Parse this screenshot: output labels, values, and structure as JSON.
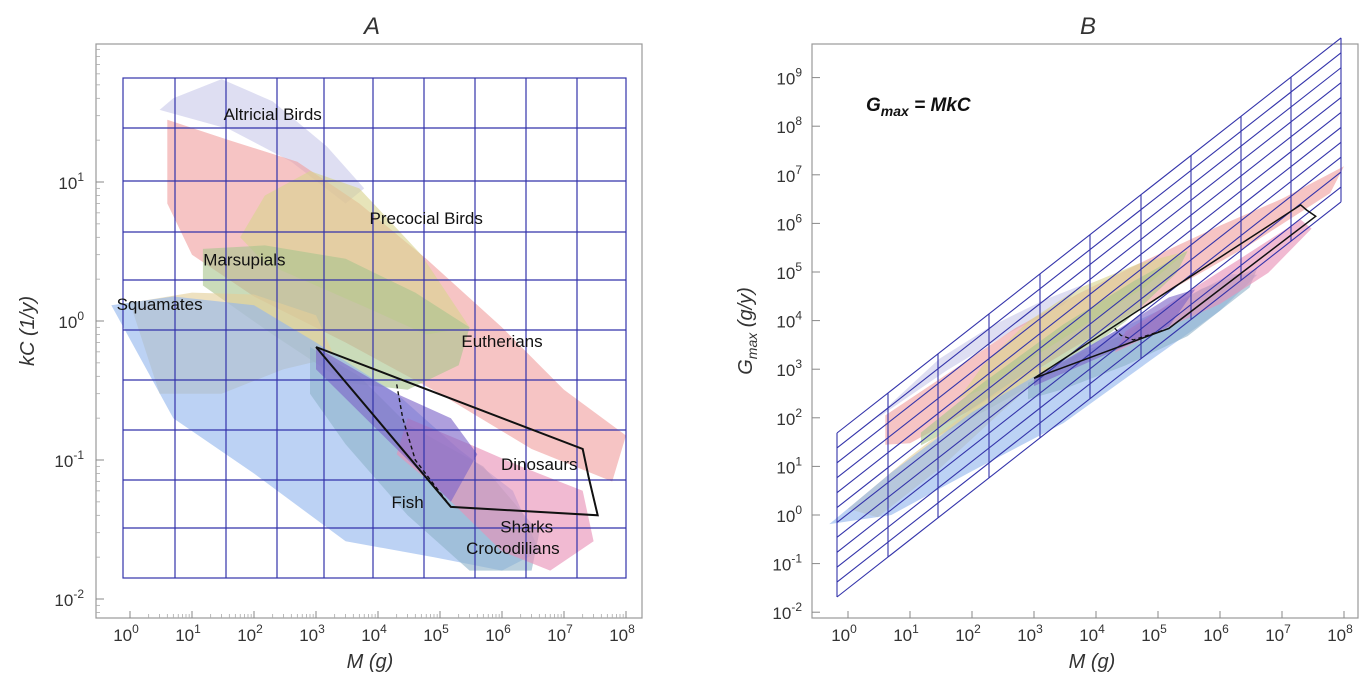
{
  "chart_data": [
    {
      "panel": "A",
      "type": "area",
      "title": "A",
      "xlabel": "M  (g)",
      "ylabel": "kC  (1/y)",
      "xscale": "log",
      "yscale": "log",
      "xlim": [
        0.2,
        200000000
      ],
      "ylim": [
        0.0085,
        90
      ],
      "grid": "blue grid inside data region",
      "x_ticks": [
        "10^0",
        "10^1",
        "10^2",
        "10^3",
        "10^4",
        "10^5",
        "10^6",
        "10^7",
        "10^8"
      ],
      "y_ticks": [
        "10^-2",
        "10^-1",
        "10^0",
        "10^1"
      ],
      "region_labels": [
        {
          "name": "Altricial Birds",
          "x": 200,
          "y": 28
        },
        {
          "name": "Precocial Birds",
          "x": 60000,
          "y": 5
        },
        {
          "name": "Marsupials",
          "x": 70,
          "y": 2.5
        },
        {
          "name": "Squamates",
          "x": 3,
          "y": 1.2
        },
        {
          "name": "Eutherians",
          "x": 1000000,
          "y": 0.65
        },
        {
          "name": "Dinosaurs",
          "x": 4000000,
          "y": 0.085
        },
        {
          "name": "Fish",
          "x": 30000,
          "y": 0.045
        },
        {
          "name": "Crocodilians",
          "x": 1500000,
          "y": 0.021
        },
        {
          "name": "Sharks",
          "x": 2500000,
          "y": 0.03
        }
      ],
      "regions": [
        {
          "name": "Altricial Birds",
          "color": "#c9c9ea",
          "points": [
            [
              5,
              40
            ],
            [
              30,
              55
            ],
            [
              200,
              38
            ],
            [
              1500,
              18
            ],
            [
              6000,
              9
            ],
            [
              3000,
              7
            ],
            [
              400,
              14
            ],
            [
              40,
              24
            ],
            [
              3,
              33
            ]
          ]
        },
        {
          "name": "Eutherians",
          "color": "#f0a0a0",
          "points": [
            [
              4,
              28
            ],
            [
              40,
              20
            ],
            [
              500,
              14
            ],
            [
              5000,
              7
            ],
            [
              60000,
              2.8
            ],
            [
              1000000,
              0.9
            ],
            [
              10000000,
              0.32
            ],
            [
              100000000,
              0.15
            ],
            [
              60000000,
              0.07
            ],
            [
              3000000,
              0.12
            ],
            [
              100000,
              0.3
            ],
            [
              3000,
              0.7
            ],
            [
              100,
              1.5
            ],
            [
              10,
              3
            ],
            [
              4,
              7
            ]
          ]
        },
        {
          "name": "Precocial Birds",
          "color": "#d9d48e",
          "points": [
            [
              150,
              8
            ],
            [
              800,
              12
            ],
            [
              5000,
              9
            ],
            [
              50000,
              3
            ],
            [
              300000,
              0.9
            ],
            [
              60000,
              0.8
            ],
            [
              8000,
              1.2
            ],
            [
              1000,
              1.8
            ],
            [
              150,
              2.6
            ],
            [
              60,
              4
            ]
          ]
        },
        {
          "name": "Marsupials",
          "color": "#a9c58e",
          "points": [
            [
              15,
              3.3
            ],
            [
              150,
              3.5
            ],
            [
              3000,
              2.8
            ],
            [
              40000,
              1.6
            ],
            [
              300000,
              0.9
            ],
            [
              200000,
              0.48
            ],
            [
              30000,
              0.32
            ],
            [
              3000,
              0.36
            ],
            [
              200,
              0.8
            ],
            [
              15,
              1.8
            ]
          ]
        },
        {
          "name": "Squamates",
          "color": "#e4cf9a",
          "points": [
            [
              1,
              1.35
            ],
            [
              10,
              1.6
            ],
            [
              100,
              1.55
            ],
            [
              1000,
              1.1
            ],
            [
              2000,
              0.55
            ],
            [
              300,
              0.45
            ],
            [
              30,
              0.3
            ],
            [
              3,
              0.3
            ]
          ]
        },
        {
          "name": "Fish",
          "color": "#93b6ee",
          "points": [
            [
              0.5,
              1.3
            ],
            [
              5,
              1.5
            ],
            [
              100,
              1.3
            ],
            [
              1000,
              0.7
            ],
            [
              20000,
              0.3
            ],
            [
              200000,
              0.12
            ],
            [
              1500000,
              0.06
            ],
            [
              4000000,
              0.022
            ],
            [
              1000000,
              0.016
            ],
            [
              80000,
              0.02
            ],
            [
              3000,
              0.026
            ],
            [
              100,
              0.08
            ],
            [
              5,
              0.2
            ]
          ]
        },
        {
          "name": "Crocodilians",
          "color": "#8fb3c9",
          "points": [
            [
              800,
              0.65
            ],
            [
              5000,
              0.4
            ],
            [
              30000,
              0.18
            ],
            [
              500000,
              0.09
            ],
            [
              4000000,
              0.03
            ],
            [
              3000000,
              0.016
            ],
            [
              300000,
              0.016
            ],
            [
              30000,
              0.04
            ],
            [
              3000,
              0.13
            ],
            [
              800,
              0.3
            ]
          ]
        },
        {
          "name": "Sharks",
          "color": "#e98fb6",
          "points": [
            [
              30000,
              0.2
            ],
            [
              300000,
              0.13
            ],
            [
              2000000,
              0.09
            ],
            [
              20000000,
              0.06
            ],
            [
              30000000,
              0.026
            ],
            [
              6000000,
              0.016
            ],
            [
              1000000,
              0.022
            ],
            [
              100000,
              0.06
            ],
            [
              20000,
              0.11
            ]
          ]
        },
        {
          "name": "Dinosaurs-fill",
          "color": "#7c64c8",
          "points": [
            [
              1000,
              0.65
            ],
            [
              20000,
              0.3
            ],
            [
              150000,
              0.2
            ],
            [
              400000,
              0.11
            ],
            [
              150000,
              0.05
            ],
            [
              20000,
              0.12
            ],
            [
              1000,
              0.45
            ]
          ]
        }
      ],
      "dinosaur_outline": [
        [
          1000,
          0.65
        ],
        [
          20000000,
          0.12
        ],
        [
          25000000,
          0.075
        ],
        [
          35000000,
          0.04
        ],
        [
          150000,
          0.046
        ],
        [
          1000,
          0.65
        ]
      ],
      "dinosaur_dashed": [
        [
          20000,
          0.35
        ],
        [
          25000,
          0.2
        ],
        [
          40000,
          0.1
        ],
        [
          150000,
          0.046
        ]
      ]
    },
    {
      "panel": "B",
      "type": "area",
      "title": "B",
      "xlabel": "M  (g)",
      "ylabel_main": "G",
      "ylabel_sub": "max",
      "ylabel_units": "  (g/y)",
      "xscale": "log",
      "yscale": "log",
      "xlim": [
        0.2,
        200000000
      ],
      "ylim": [
        0.006,
        3000000000
      ],
      "annotation_main": "G",
      "annotation_sub": "max",
      "annotation_rest": "  =  MkC",
      "x_ticks": [
        "10^0",
        "10^1",
        "10^2",
        "10^3",
        "10^4",
        "10^5",
        "10^6",
        "10^7",
        "10^8"
      ],
      "y_ticks": [
        "10^-2",
        "10^-1",
        "10^0",
        "10^1",
        "10^2",
        "10^3",
        "10^4",
        "10^5",
        "10^6",
        "10^7",
        "10^8",
        "10^9"
      ]
    }
  ],
  "colors": {
    "grid": "#3333aa",
    "frame": "#888888",
    "text": "#333333"
  }
}
